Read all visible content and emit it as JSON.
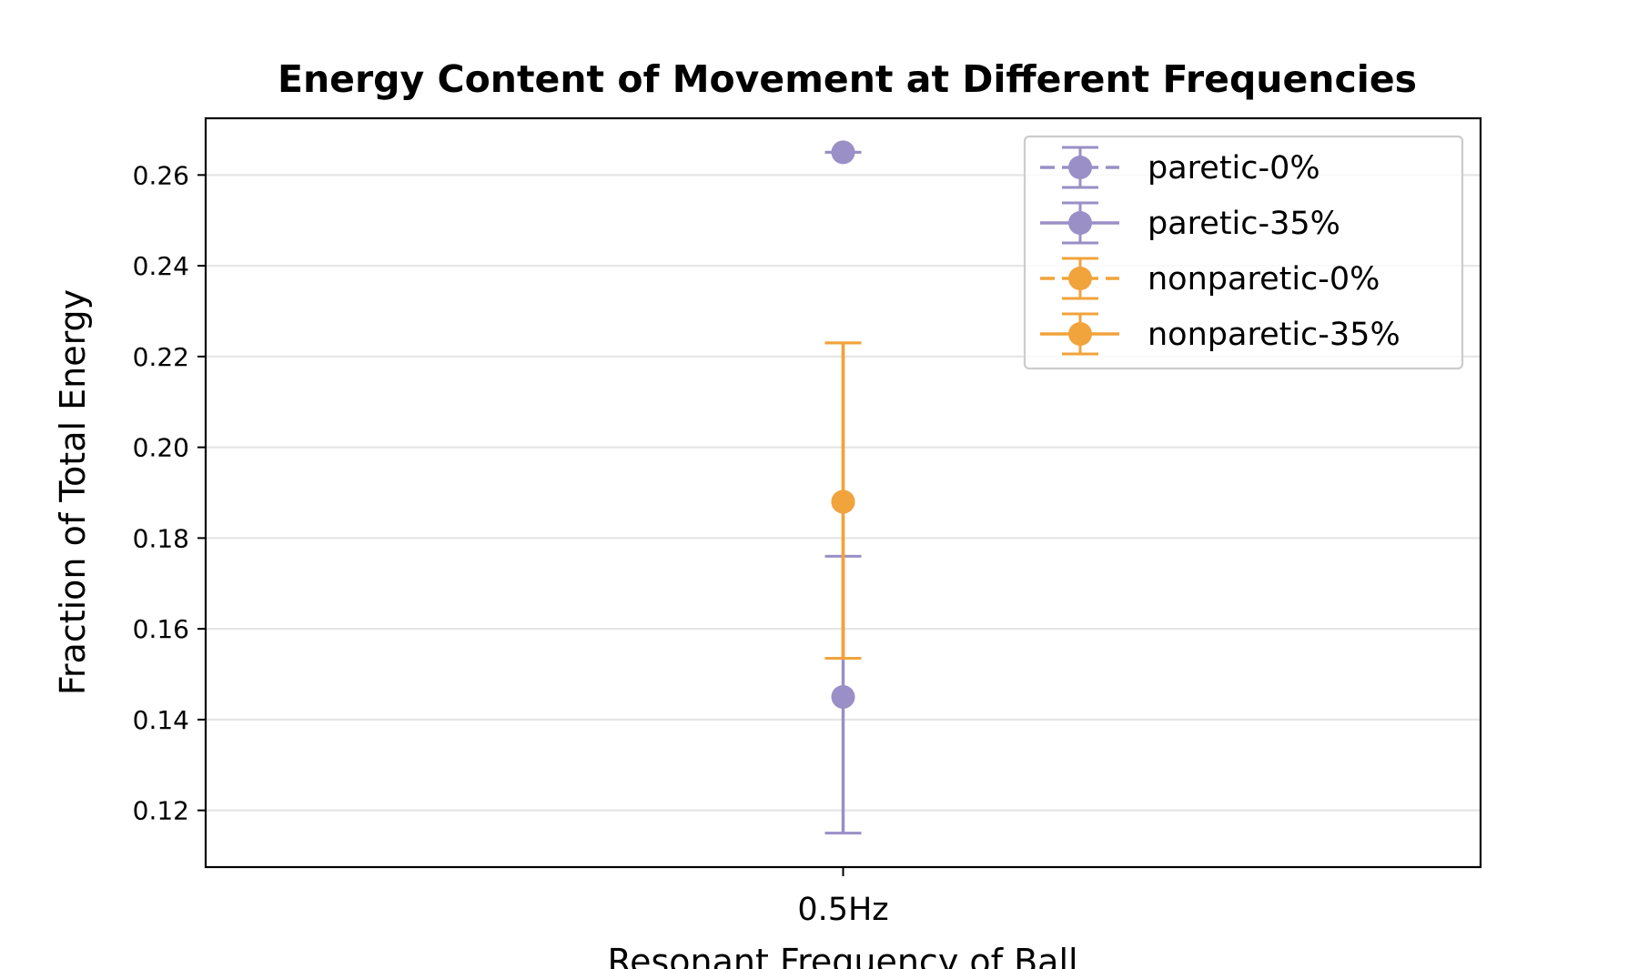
{
  "chart_data": {
    "type": "scatter",
    "title": "Energy Content of Movement at Different Frequencies",
    "xlabel": "Resonant Frequency of Ball",
    "ylabel": "Fraction of Total Energy",
    "categories": [
      "0.5Hz"
    ],
    "ylim": [
      0.1075,
      0.2725
    ],
    "yticks": [
      "0.12",
      "0.14",
      "0.16",
      "0.18",
      "0.20",
      "0.22",
      "0.24",
      "0.26"
    ],
    "grid": "horizontal",
    "legend_placement": "top-right",
    "series": [
      {
        "name": "paretic-0%",
        "color": "#9a8fc6",
        "linestyle": "dashed",
        "values": [
          0.265
        ],
        "error_low": [
          0.265
        ],
        "error_high": [
          0.265
        ]
      },
      {
        "name": "paretic-35%",
        "color": "#9a8fc6",
        "linestyle": "solid",
        "values": [
          0.145
        ],
        "error_low": [
          0.115
        ],
        "error_high": [
          0.176
        ]
      },
      {
        "name": "nonparetic-0%",
        "color": "#f1a33c",
        "linestyle": "dashed",
        "values": [
          0.188
        ],
        "error_low": [
          0.1535
        ],
        "error_high": [
          0.223
        ]
      },
      {
        "name": "nonparetic-35%",
        "color": "#f1a33c",
        "linestyle": "solid",
        "values": [
          0.188
        ],
        "error_low": [
          0.1535
        ],
        "error_high": [
          0.223
        ]
      }
    ]
  }
}
